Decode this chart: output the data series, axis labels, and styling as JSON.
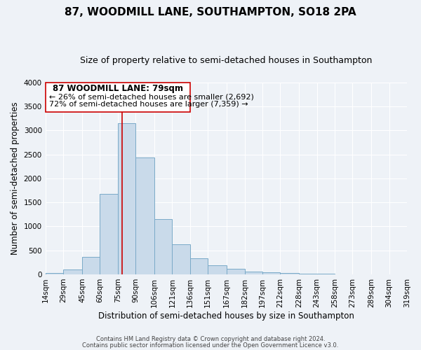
{
  "title": "87, WOODMILL LANE, SOUTHAMPTON, SO18 2PA",
  "subtitle": "Size of property relative to semi-detached houses in Southampton",
  "xlabel": "Distribution of semi-detached houses by size in Southampton",
  "ylabel": "Number of semi-detached properties",
  "footnote1": "Contains HM Land Registry data © Crown copyright and database right 2024.",
  "footnote2": "Contains public sector information licensed under the Open Government Licence v3.0.",
  "bar_color": "#c9daea",
  "bar_edge_color": "#7aaac8",
  "background_color": "#eef2f7",
  "property_line_x": 79,
  "property_label": "87 WOODMILL LANE: 79sqm",
  "smaller_pct": "26%",
  "smaller_count": "2,692",
  "larger_pct": "72%",
  "larger_count": "7,359",
  "bin_edges": [
    14,
    29,
    45,
    60,
    75,
    90,
    106,
    121,
    136,
    151,
    167,
    182,
    197,
    212,
    228,
    243,
    258,
    273,
    289,
    304,
    319
  ],
  "bin_labels": [
    "14sqm",
    "29sqm",
    "45sqm",
    "60sqm",
    "75sqm",
    "90sqm",
    "106sqm",
    "121sqm",
    "136sqm",
    "151sqm",
    "167sqm",
    "182sqm",
    "197sqm",
    "212sqm",
    "228sqm",
    "243sqm",
    "258sqm",
    "273sqm",
    "289sqm",
    "304sqm",
    "319sqm"
  ],
  "counts": [
    30,
    100,
    360,
    1680,
    3150,
    2430,
    1150,
    630,
    330,
    185,
    110,
    60,
    45,
    25,
    15,
    8,
    5,
    3,
    2,
    1
  ],
  "ylim": [
    0,
    4000
  ],
  "yticks": [
    0,
    500,
    1000,
    1500,
    2000,
    2500,
    3000,
    3500,
    4000
  ],
  "box_color": "#ffffff",
  "box_edge_color": "#cc0000",
  "annotation_line_color": "#cc0000",
  "title_fontsize": 11,
  "subtitle_fontsize": 9,
  "label_fontsize": 8.5,
  "tick_fontsize": 7.5,
  "annotation_fontsize": 8.5,
  "footnote_fontsize": 6
}
